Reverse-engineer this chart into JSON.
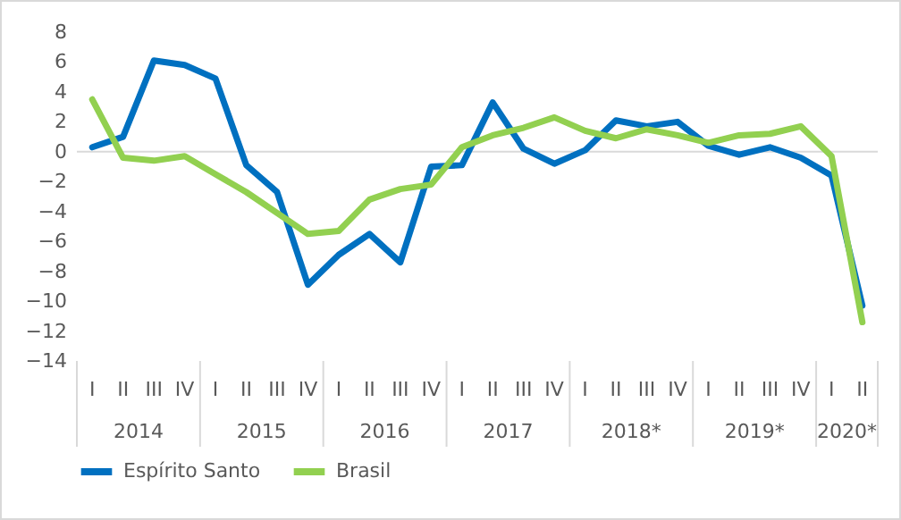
{
  "chart_data": {
    "type": "line",
    "categories": [
      "I",
      "II",
      "III",
      "IV",
      "I",
      "II",
      "III",
      "IV",
      "I",
      "II",
      "III",
      "IV",
      "I",
      "II",
      "III",
      "IV",
      "I",
      "II",
      "III",
      "IV",
      "I",
      "II",
      "III",
      "IV",
      "I",
      "II"
    ],
    "series": [
      {
        "name": "Espírito Santo",
        "color": "#0070c0",
        "values": [
          0.3,
          1.0,
          6.1,
          5.8,
          4.9,
          -0.9,
          -2.7,
          -8.9,
          -6.9,
          -5.5,
          -7.4,
          -1.0,
          -0.9,
          3.3,
          0.2,
          -0.8,
          0.1,
          2.1,
          1.7,
          2.0,
          0.4,
          -0.2,
          0.3,
          -0.4,
          -1.6,
          -10.3
        ]
      },
      {
        "name": "Brasil",
        "color": "#92d050",
        "values": [
          3.5,
          -0.4,
          -0.6,
          -0.3,
          -1.5,
          -2.7,
          -4.1,
          -5.5,
          -5.3,
          -3.2,
          -2.5,
          -2.2,
          0.3,
          1.1,
          1.6,
          2.3,
          1.4,
          0.9,
          1.5,
          1.1,
          0.6,
          1.1,
          1.2,
          1.7,
          -0.3,
          -11.4
        ]
      }
    ],
    "ylim": [
      -14,
      8
    ],
    "yticks": [
      -14,
      -12,
      -10,
      -8,
      -6,
      -4,
      -2,
      0,
      2,
      4,
      6,
      8
    ],
    "ref_lines": [
      {
        "axis": "y",
        "value": 0,
        "color": "#d9d9d9"
      }
    ],
    "annotations": [
      "2014",
      "2015",
      "2016",
      "2017",
      "2018*",
      "2019*",
      "2020*"
    ],
    "legend": "bottom",
    "grid": false,
    "marker": "none",
    "line_style": "solid"
  }
}
